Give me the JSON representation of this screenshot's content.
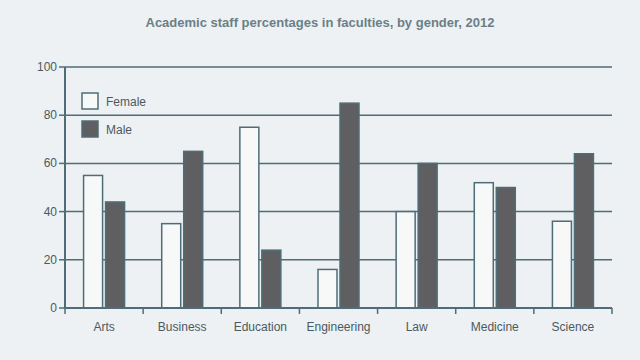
{
  "chart_data": {
    "type": "bar",
    "title": "Academic staff percentages in faculties, by gender, 2012",
    "categories": [
      "Arts",
      "Business",
      "Education",
      "Engineering",
      "Law",
      "Medicine",
      "Science"
    ],
    "series": [
      {
        "name": "Female",
        "color": "#f7f8f8",
        "values": [
          55,
          35,
          75,
          16,
          40,
          52,
          36
        ]
      },
      {
        "name": "Male",
        "color": "#5f5f62",
        "values": [
          44,
          65,
          24,
          85,
          60,
          50,
          64
        ]
      }
    ],
    "ylim": [
      0,
      100
    ],
    "yticks": [
      0,
      20,
      40,
      60,
      80,
      100
    ],
    "grid": true,
    "legend": "top-left"
  }
}
